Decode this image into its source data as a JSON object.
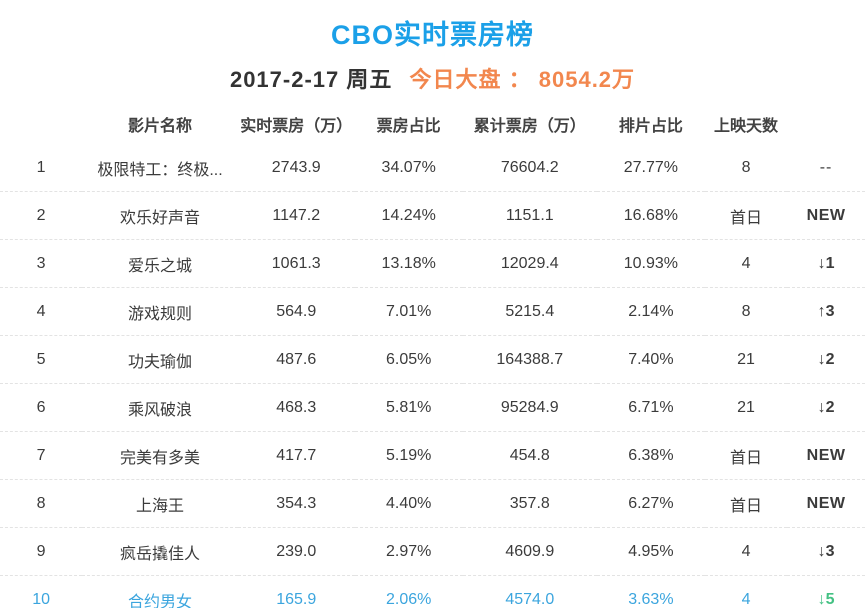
{
  "title": "CBO实时票房榜",
  "subtitle": {
    "date": "2017-2-17 周五",
    "market_label": "今日大盘 ：",
    "market_value": "8054.2万"
  },
  "colors": {
    "title_blue": "#1ba0e8",
    "market_orange": "#f2874e",
    "rank_red": "#e0484a",
    "trend_up_red": "#e7473c",
    "trend_down_green": "#43c183",
    "new_badge_red": "#f15b4e",
    "highlight_row_blue": "#3ba5de",
    "text_dark": "#3b3b3b",
    "divider_gray": "#e3e3e3"
  },
  "table": {
    "headers": {
      "name": "影片名称",
      "realtime": "实时票房（万）",
      "share": "票房占比",
      "cumulative": "累计票房（万）",
      "scheduling": "排片占比",
      "days": "上映天数"
    },
    "rows": [
      {
        "rank": "1",
        "name": "极限特工：终极...",
        "realtime": "2743.9",
        "share": "34.07%",
        "cumulative": "76604.2",
        "scheduling": "27.77%",
        "days": "8",
        "trend": "--",
        "trend_type": "none",
        "rank_red": true,
        "highlight": false
      },
      {
        "rank": "2",
        "name": "欢乐好声音",
        "realtime": "1147.2",
        "share": "14.24%",
        "cumulative": "1151.1",
        "scheduling": "16.68%",
        "days": "首日",
        "trend": "NEW",
        "trend_type": "new",
        "rank_red": true,
        "highlight": false
      },
      {
        "rank": "3",
        "name": "爱乐之城",
        "realtime": "1061.3",
        "share": "13.18%",
        "cumulative": "12029.4",
        "scheduling": "10.93%",
        "days": "4",
        "trend": "↓1",
        "trend_type": "down",
        "rank_red": true,
        "highlight": false
      },
      {
        "rank": "4",
        "name": "游戏规则",
        "realtime": "564.9",
        "share": "7.01%",
        "cumulative": "5215.4",
        "scheduling": "2.14%",
        "days": "8",
        "trend": "↑3",
        "trend_type": "up",
        "rank_red": false,
        "highlight": false
      },
      {
        "rank": "5",
        "name": "功夫瑜伽",
        "realtime": "487.6",
        "share": "6.05%",
        "cumulative": "164388.7",
        "scheduling": "7.40%",
        "days": "21",
        "trend": "↓2",
        "trend_type": "down",
        "rank_red": false,
        "highlight": false
      },
      {
        "rank": "6",
        "name": "乘风破浪",
        "realtime": "468.3",
        "share": "5.81%",
        "cumulative": "95284.9",
        "scheduling": "6.71%",
        "days": "21",
        "trend": "↓2",
        "trend_type": "down",
        "rank_red": false,
        "highlight": false
      },
      {
        "rank": "7",
        "name": "完美有多美",
        "realtime": "417.7",
        "share": "5.19%",
        "cumulative": "454.8",
        "scheduling": "6.38%",
        "days": "首日",
        "trend": "NEW",
        "trend_type": "new",
        "rank_red": false,
        "highlight": false
      },
      {
        "rank": "8",
        "name": "上海王",
        "realtime": "354.3",
        "share": "4.40%",
        "cumulative": "357.8",
        "scheduling": "6.27%",
        "days": "首日",
        "trend": "NEW",
        "trend_type": "new",
        "rank_red": false,
        "highlight": false
      },
      {
        "rank": "9",
        "name": "疯岳撬佳人",
        "realtime": "239.0",
        "share": "2.97%",
        "cumulative": "4609.9",
        "scheduling": "4.95%",
        "days": "4",
        "trend": "↓3",
        "trend_type": "down",
        "rank_red": false,
        "highlight": false
      },
      {
        "rank": "10",
        "name": "合约男女",
        "realtime": "165.9",
        "share": "2.06%",
        "cumulative": "4574.0",
        "scheduling": "3.63%",
        "days": "4",
        "trend": "↓5",
        "trend_type": "down",
        "rank_red": false,
        "highlight": true
      }
    ]
  }
}
